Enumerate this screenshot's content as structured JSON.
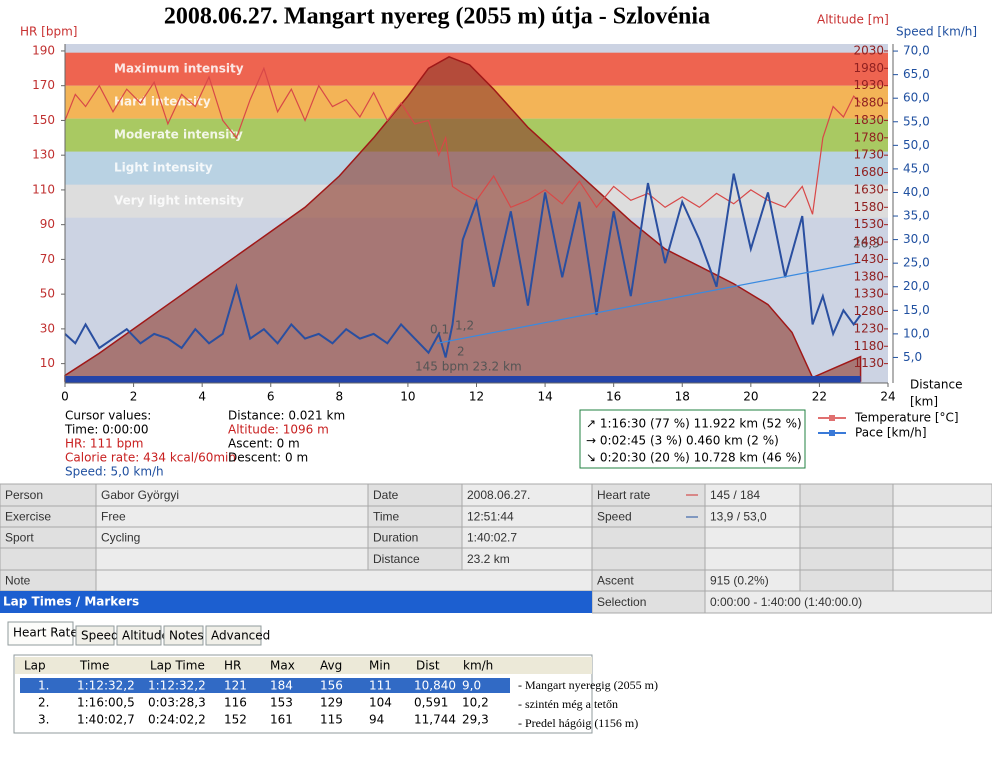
{
  "chart_data": {
    "type": "line",
    "title": "2008.06.27.   Mangart nyereg (2055 m) útja - Szlovénia",
    "ylabel": "HR [bpm]",
    "y2label": "Altitude [m]",
    "y3label": "Speed [km/h]",
    "xlabel": [
      "Distance",
      "[km]"
    ],
    "xlim": [
      0,
      24
    ],
    "xticks": [
      0,
      2,
      4,
      6,
      8,
      10,
      12,
      14,
      16,
      18,
      20,
      22,
      24
    ],
    "ylim": [
      0,
      194
    ],
    "yticks": [
      10,
      30,
      50,
      70,
      90,
      110,
      130,
      150,
      170,
      190
    ],
    "y2lim": [
      1080,
      2050
    ],
    "y2ticks": [
      1130,
      1180,
      1230,
      1280,
      1330,
      1380,
      1430,
      1480,
      1530,
      1580,
      1630,
      1680,
      1730,
      1780,
      1830,
      1880,
      1930,
      1980,
      2030
    ],
    "y3lim": [
      0,
      71.5
    ],
    "y3ticks": [
      {
        "value": 5,
        "label": "5,0"
      },
      {
        "value": 10,
        "label": "10,0"
      },
      {
        "value": 15,
        "label": "15,0"
      },
      {
        "value": 20,
        "label": "20,0"
      },
      {
        "value": 25,
        "label": "25,0"
      },
      {
        "value": 30,
        "label": "30,0"
      },
      {
        "value": 35,
        "label": "35,0"
      },
      {
        "value": 40,
        "label": "40,0"
      },
      {
        "value": 45,
        "label": "45,0"
      },
      {
        "value": 50,
        "label": "50,0"
      },
      {
        "value": 55,
        "label": "55,0"
      },
      {
        "value": 60,
        "label": "60,0"
      },
      {
        "value": 65,
        "label": "65,0"
      },
      {
        "value": 70,
        "label": "70,0"
      }
    ],
    "zones": [
      {
        "name": "Maximum intensity",
        "from": 170,
        "to": 189,
        "color": "#ee6450"
      },
      {
        "name": "Hard intensity",
        "from": 151,
        "to": 170,
        "color": "#f3b457"
      },
      {
        "name": "Moderate intensity",
        "from": 132,
        "to": 151,
        "color": "#a9c962"
      },
      {
        "name": "Light intensity",
        "from": 113,
        "to": 132,
        "color": "#b9d2e3"
      },
      {
        "name": "Very light intensity",
        "from": 94,
        "to": 113,
        "color": "#dddddd"
      }
    ],
    "series": [
      {
        "axis": "y2",
        "color": "#a01818",
        "fill": "#8e3a2c",
        "x": [
          0,
          1,
          2,
          3,
          4,
          5,
          6,
          7,
          8,
          9,
          10,
          10.6,
          11.2,
          11.8,
          12.5,
          13.5,
          14.5,
          15.5,
          16.5,
          17.5,
          18.5,
          19.5,
          20.5,
          21.2,
          21.8,
          22.5,
          23.2
        ],
        "values": [
          1096,
          1160,
          1230,
          1300,
          1370,
          1440,
          1510,
          1580,
          1670,
          1780,
          1900,
          1980,
          2013,
          1990,
          1920,
          1810,
          1720,
          1630,
          1540,
          1460,
          1410,
          1360,
          1300,
          1220,
          1090,
          1120,
          1150
        ]
      },
      {
        "axis": "y",
        "color": "#d84848",
        "x": [
          0,
          0.3,
          0.6,
          1,
          1.4,
          1.8,
          2.2,
          2.6,
          3,
          3.4,
          3.8,
          4.2,
          4.6,
          5,
          5.4,
          5.8,
          6.2,
          6.6,
          7,
          7.4,
          7.8,
          8.2,
          8.6,
          9,
          9.4,
          9.8,
          10.2,
          10.6,
          10.9,
          11.1,
          11.3,
          11.6,
          12,
          12.5,
          13,
          13.5,
          14,
          14.5,
          15,
          15.5,
          16,
          16.5,
          17,
          17.5,
          18,
          18.5,
          19,
          19.5,
          20,
          20.5,
          21,
          21.5,
          21.8,
          22.1,
          22.4,
          22.7,
          23,
          23.2
        ],
        "values": [
          150,
          165,
          158,
          170,
          155,
          168,
          160,
          172,
          148,
          165,
          158,
          175,
          150,
          140,
          162,
          180,
          155,
          168,
          150,
          170,
          158,
          162,
          152,
          166,
          150,
          160,
          148,
          150,
          130,
          140,
          112,
          108,
          104,
          118,
          100,
          104,
          110,
          102,
          115,
          100,
          112,
          104,
          108,
          100,
          106,
          100,
          108,
          102,
          110,
          104,
          100,
          112,
          96,
          140,
          158,
          152,
          164,
          160
        ]
      },
      {
        "axis": "y3",
        "color": "#2a4fa0",
        "x": [
          0,
          0.3,
          0.6,
          1,
          1.4,
          1.8,
          2.2,
          2.6,
          3,
          3.4,
          3.8,
          4.2,
          4.6,
          5,
          5.4,
          5.8,
          6.2,
          6.6,
          7,
          7.4,
          7.8,
          8.2,
          8.6,
          9,
          9.4,
          9.8,
          10.2,
          10.6,
          10.9,
          11.1,
          11.3,
          11.6,
          12,
          12.5,
          13,
          13.5,
          14,
          14.5,
          15,
          15.5,
          16,
          16.5,
          17,
          17.5,
          18,
          18.5,
          19,
          19.5,
          20,
          20.5,
          21,
          21.5,
          21.8,
          22.1,
          22.4,
          22.7,
          23,
          23.2
        ],
        "values": [
          10,
          8,
          12,
          7,
          9,
          11,
          8,
          10,
          9,
          7,
          11,
          8,
          10,
          20,
          9,
          11,
          8,
          12,
          9,
          10,
          8,
          11,
          9,
          10,
          8,
          12,
          9,
          6,
          10,
          5,
          12,
          30,
          38,
          20,
          36,
          16,
          40,
          22,
          38,
          14,
          36,
          18,
          42,
          25,
          38,
          30,
          20,
          44,
          28,
          40,
          22,
          35,
          12,
          18,
          10,
          15,
          12,
          14
        ]
      },
      {
        "axis": "y3",
        "color": "#3a8ae0",
        "x": [
          10.85,
          23.2
        ],
        "values": [
          8,
          25.2
        ]
      }
    ],
    "annotations": [
      "145 bpm 23.2 km",
      "0,1",
      "1,2",
      "2",
      "26,3"
    ],
    "legend": [
      {
        "name": "Temperature [°C]",
        "color": "#e07070"
      },
      {
        "name": "Pace [km/h]",
        "color": "#3a7ad8"
      }
    ]
  },
  "cursor": {
    "title": "Cursor values:",
    "time": "Time: 0:00:00",
    "hr": "HR: 111 bpm",
    "calorie": "Calorie rate: 434 kcal/60min",
    "speed": "Speed: 5,0 km/h",
    "distance": "Distance: 0.021 km",
    "altitude": "Altitude: 1096 m",
    "ascent": "Ascent: 0 m",
    "descent": "Descent: 0 m"
  },
  "summary": [
    "↗ 1:16:30  (77 %) 11.922 km  (52 %)",
    "→ 0:02:45    (3 %)  0.460 km    (2 %)",
    "↘ 0:20:30  (20 %) 10.728 km  (46 %)"
  ],
  "info": {
    "rows": [
      [
        "Person",
        "Gabor Györgyi",
        "Date",
        "2008.06.27.",
        "Heart rate",
        "145 / 184"
      ],
      [
        "Exercise",
        "Free",
        "Time",
        "12:51:44",
        "Speed",
        "13,9 / 53,0"
      ],
      [
        "Sport",
        "Cycling",
        "Duration",
        "1:40:02.7",
        null,
        null
      ],
      [
        null,
        null,
        "Distance",
        "23.2 km",
        null,
        null
      ],
      [
        "Note",
        null,
        null,
        null,
        "Ascent",
        "915 (0.2%)"
      ]
    ],
    "selection_label": "Selection",
    "selection": "0:00:00 - 1:40:00 (1:40:00.0)"
  },
  "laps": {
    "title": "Lap Times / Markers",
    "tabs": [
      "Heart Rate",
      "Speed",
      "Altitude",
      "Notes",
      "Advanced"
    ],
    "columns": [
      "Lap",
      "Time",
      "Lap Time",
      "HR",
      "Max",
      "Avg",
      "Min",
      "Dist",
      "km/h"
    ],
    "rows": [
      [
        "1.",
        "1:12:32,2",
        "1:12:32,2",
        "121",
        "184",
        "156",
        "111",
        "10,840",
        "9,0"
      ],
      [
        "2.",
        "1:16:00,5",
        "0:03:28,3",
        "116",
        "153",
        "129",
        "104",
        "0,591",
        "10,2"
      ],
      [
        "3.",
        "1:40:02,7",
        "0:24:02,2",
        "152",
        "161",
        "115",
        "94",
        "11,744",
        "29,3"
      ]
    ],
    "notes": [
      "- Mangart nyeregig (2055 m)",
      "- szintén még a tetőn",
      "- Predel hágóig (1156 m)"
    ]
  }
}
